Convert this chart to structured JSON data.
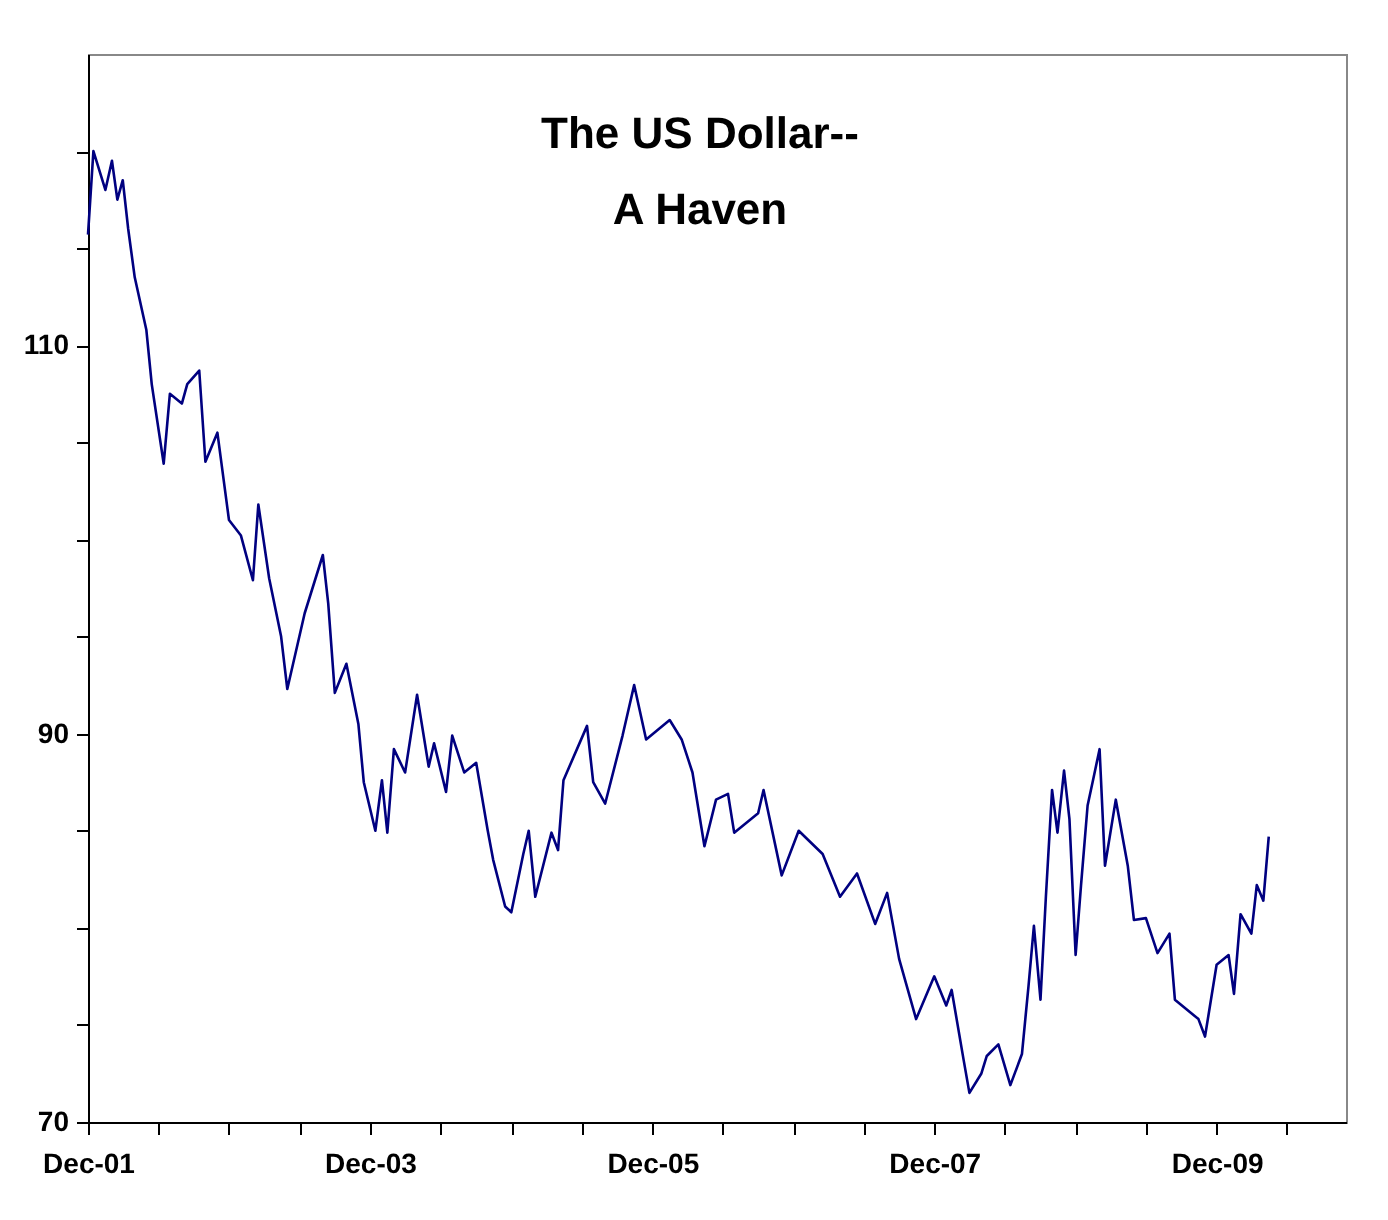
{
  "chart_data": {
    "type": "line",
    "title": "The US Dollar--\nA Haven",
    "x": [
      "2001-12-01",
      "2001-12-15",
      "2002-01-15",
      "2002-02-01",
      "2002-02-15",
      "2002-03-01",
      "2002-03-15",
      "2002-04-01",
      "2002-05-01",
      "2002-05-15",
      "2002-06-15",
      "2002-07-01",
      "2002-08-01",
      "2002-08-15",
      "2002-09-15",
      "2002-10-01",
      "2002-11-01",
      "2002-12-01",
      "2003-01-01",
      "2003-02-01",
      "2003-02-15",
      "2003-03-15",
      "2003-04-15",
      "2003-05-01",
      "2003-06-15",
      "2003-08-01",
      "2003-08-15",
      "2003-09-01",
      "2003-10-01",
      "2003-11-01",
      "2003-11-15",
      "2003-12-15",
      "2004-01-01",
      "2004-01-15",
      "2004-02-01",
      "2004-03-01",
      "2004-04-01",
      "2004-05-01",
      "2004-05-15",
      "2004-06-15",
      "2004-07-01",
      "2004-08-01",
      "2004-09-01",
      "2004-10-01",
      "2004-10-15",
      "2004-11-15",
      "2004-12-01",
      "2005-01-01",
      "2005-01-15",
      "2005-02-01",
      "2005-03-15",
      "2005-04-01",
      "2005-04-15",
      "2005-06-15",
      "2005-07-01",
      "2005-08-01",
      "2005-09-15",
      "2005-10-15",
      "2005-11-15",
      "2006-01-15",
      "2006-02-15",
      "2006-03-15",
      "2006-04-15",
      "2006-05-15",
      "2006-06-15",
      "2006-07-01",
      "2006-09-01",
      "2006-09-15",
      "2006-11-01",
      "2006-12-15",
      "2007-02-15",
      "2007-04-01",
      "2007-05-15",
      "2007-07-01",
      "2007-08-01",
      "2007-09-01",
      "2007-10-15",
      "2007-12-01",
      "2008-01-01",
      "2008-01-15",
      "2008-02-15",
      "2008-03-01",
      "2008-04-01",
      "2008-04-15",
      "2008-05-15",
      "2008-06-15",
      "2008-07-15",
      "2008-08-01",
      "2008-08-15",
      "2008-09-01",
      "2008-09-15",
      "2008-10-01",
      "2008-10-15",
      "2008-11-01",
      "2008-11-15",
      "2008-12-01",
      "2008-12-15",
      "2009-01-01",
      "2009-01-15",
      "2009-02-01",
      "2009-02-15",
      "2009-03-15",
      "2009-04-15",
      "2009-05-01",
      "2009-06-01",
      "2009-07-01",
      "2009-08-01",
      "2009-08-15",
      "2009-10-15",
      "2009-11-01",
      "2009-12-01",
      "2010-01-01",
      "2010-01-15",
      "2010-02-01",
      "2010-03-01",
      "2010-03-15",
      "2010-04-01",
      "2010-04-15"
    ],
    "series": [
      {
        "color": "#000080",
        "values": [
          115.7,
          120.0,
          118,
          119.5,
          117.5,
          118.5,
          116,
          113.5,
          110.8,
          108,
          103.9,
          107.5,
          107,
          108,
          108.7,
          104,
          105.5,
          101,
          100.2,
          97.9,
          101.8,
          98,
          95,
          92.3,
          96.2,
          99.2,
          96.7,
          92.1,
          93.6,
          90.5,
          87.5,
          85,
          87.6,
          84.9,
          89.2,
          88,
          92,
          88.3,
          89.5,
          87,
          89.9,
          88,
          88.5,
          85,
          83.5,
          81.1,
          80.8,
          83.8,
          85,
          81.6,
          84.9,
          84,
          87.6,
          90.4,
          87.5,
          86.4,
          89.9,
          92.5,
          89.7,
          90.7,
          89.7,
          88,
          84.2,
          86.6,
          86.9,
          84.9,
          85.9,
          87.1,
          82.7,
          85,
          83.8,
          81.6,
          82.8,
          80.2,
          81.8,
          78.4,
          75.3,
          77.5,
          76,
          76.8,
          73.2,
          71.5,
          72.5,
          73.4,
          74.0,
          71.9,
          73.5,
          77,
          80.1,
          76.3,
          81.6,
          87.1,
          84.9,
          88.1,
          85.6,
          78.6,
          82.2,
          86.3,
          87.6,
          89.2,
          83.2,
          86.6,
          83.2,
          80.4,
          80.5,
          78.7,
          79.7,
          76.3,
          75.3,
          74.4,
          78.1,
          78.6,
          76.6,
          80.7,
          79.7,
          82.2,
          81.4,
          84.7
        ]
      }
    ],
    "xlim": [
      "2001-12-01",
      "2010-11-01"
    ],
    "xticks": [
      {
        "value": "2001-12-01",
        "label": "Dec-01"
      },
      {
        "value": "2002-06-01",
        "label": null
      },
      {
        "value": "2002-12-01",
        "label": null
      },
      {
        "value": "2003-06-01",
        "label": null
      },
      {
        "value": "2003-12-01",
        "label": "Dec-03"
      },
      {
        "value": "2004-06-01",
        "label": null
      },
      {
        "value": "2004-12-01",
        "label": null
      },
      {
        "value": "2005-06-01",
        "label": null
      },
      {
        "value": "2005-12-01",
        "label": "Dec-05"
      },
      {
        "value": "2006-06-01",
        "label": null
      },
      {
        "value": "2006-12-01",
        "label": null
      },
      {
        "value": "2007-06-01",
        "label": null
      },
      {
        "value": "2007-12-01",
        "label": "Dec-07"
      },
      {
        "value": "2008-06-01",
        "label": null
      },
      {
        "value": "2008-12-01",
        "label": null
      },
      {
        "value": "2009-06-01",
        "label": null
      },
      {
        "value": "2009-12-01",
        "label": "Dec-09"
      },
      {
        "value": "2010-06-01",
        "label": null
      }
    ],
    "ylim": [
      70,
      125
    ],
    "yticks": [
      70,
      {
        "value": 75,
        "label": null
      },
      {
        "value": 80,
        "label": null
      },
      {
        "value": 85,
        "label": null
      },
      90,
      {
        "value": 95,
        "label": null
      },
      {
        "value": 100,
        "label": null
      },
      {
        "value": 105,
        "label": null
      },
      110,
      {
        "value": 115,
        "label": null
      },
      {
        "value": 120,
        "label": null
      }
    ],
    "grid": false,
    "marker": "none",
    "line_style": "solid"
  }
}
